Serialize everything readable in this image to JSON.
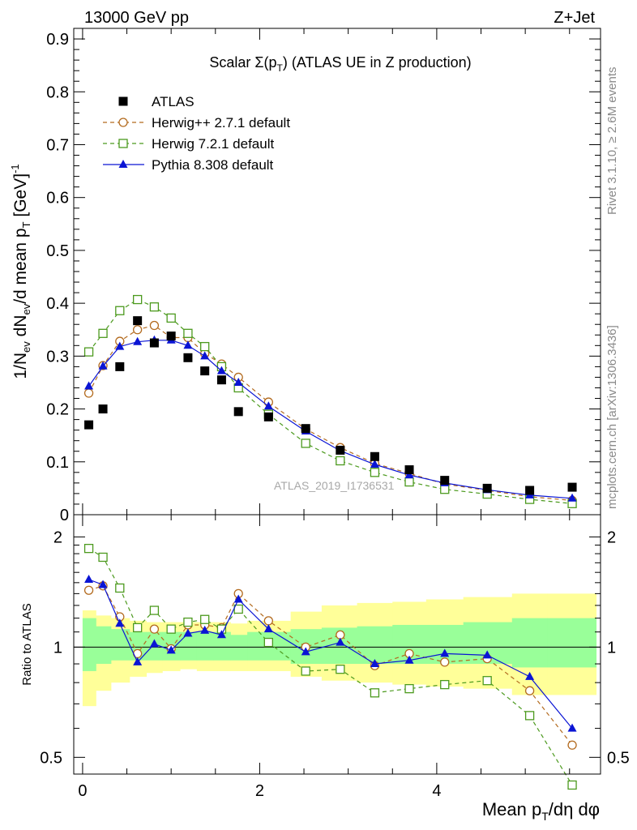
{
  "header": {
    "energy_label": "13000 GeV pp",
    "process_label": "Z+Jet"
  },
  "side_labels": {
    "rivet": "Rivet 3.1.10, ≥ 2.6M events",
    "mcplots": "mcplots.cern.ch [arXiv:1306.3436]"
  },
  "chart_data": [
    {
      "type": "line",
      "panel": "main",
      "title": "Scalar Σ(p_T) (ATLAS UE in Z production)",
      "ylabel": "1/N_ev dN_ev/d mean p_T [GeV]^-1",
      "xlabel": "",
      "watermark": "ATLAS_2019_I1736531",
      "xlim": [
        -0.1,
        5.85
      ],
      "ylim": [
        0,
        0.92
      ],
      "yticks": [
        "0",
        "0.1",
        "0.2",
        "0.3",
        "0.4",
        "0.5",
        "0.6",
        "0.7",
        "0.8",
        "0.9"
      ],
      "xticks": [
        "0",
        "2",
        "4"
      ],
      "legend_position": "top-left",
      "x": [
        0.07,
        0.23,
        0.42,
        0.62,
        0.81,
        1.0,
        1.19,
        1.38,
        1.57,
        1.76,
        2.1,
        2.52,
        2.91,
        3.3,
        3.69,
        4.09,
        4.57,
        5.05,
        5.53
      ],
      "series": [
        {
          "name": "ATLAS",
          "color": "#000000",
          "marker": "square-filled",
          "values": [
            0.17,
            0.2,
            0.28,
            0.367,
            0.325,
            0.338,
            0.297,
            0.272,
            0.255,
            0.195,
            0.185,
            0.163,
            0.122,
            0.11,
            0.085,
            0.065,
            0.05,
            0.046,
            0.052
          ]
        },
        {
          "name": "Herwig++ 2.7.1 default",
          "color": "#b36b1f",
          "marker": "circle-open",
          "dash": "5,4",
          "values": [
            0.23,
            0.282,
            0.328,
            0.35,
            0.358,
            0.335,
            0.335,
            0.305,
            0.285,
            0.26,
            0.213,
            0.162,
            0.127,
            0.097,
            0.078,
            0.058,
            0.046,
            0.034,
            0.027
          ]
        },
        {
          "name": "Herwig 7.2.1 default",
          "color": "#4c9a1e",
          "marker": "square-open",
          "dash": "5,4",
          "values": [
            0.308,
            0.343,
            0.386,
            0.407,
            0.393,
            0.372,
            0.343,
            0.318,
            0.28,
            0.24,
            0.19,
            0.135,
            0.102,
            0.08,
            0.062,
            0.048,
            0.039,
            0.029,
            0.021
          ]
        },
        {
          "name": "Pythia 8.308 default",
          "color": "#0a14d4",
          "marker": "triangle-filled",
          "values": [
            0.243,
            0.281,
            0.318,
            0.327,
            0.33,
            0.33,
            0.32,
            0.3,
            0.272,
            0.25,
            0.205,
            0.158,
            0.121,
            0.095,
            0.075,
            0.06,
            0.047,
            0.037,
            0.031
          ]
        }
      ]
    },
    {
      "type": "line",
      "panel": "ratio",
      "ylabel": "Ratio to ATLAS",
      "xlabel": "Mean p_T/dη dφ",
      "xlim": [
        -0.1,
        5.85
      ],
      "ylim": [
        0.45,
        2.3
      ],
      "yscale": "log",
      "yticks": [
        "0.5",
        "1",
        "2"
      ],
      "xticks": [
        "0",
        "2",
        "4"
      ],
      "reference_line": 1,
      "x": [
        0.07,
        0.23,
        0.42,
        0.62,
        0.81,
        1.0,
        1.19,
        1.38,
        1.57,
        1.76,
        2.1,
        2.52,
        2.91,
        3.3,
        3.69,
        4.09,
        4.57,
        5.05,
        5.53
      ],
      "bands": {
        "bin_edges": [
          0.0,
          0.15,
          0.32,
          0.53,
          0.72,
          0.9,
          1.1,
          1.29,
          1.48,
          1.67,
          1.86,
          2.35,
          2.7,
          3.1,
          3.5,
          3.88,
          4.3,
          4.85,
          5.25,
          5.8
        ],
        "inner": {
          "color": "#99ff99",
          "lower": [
            0.86,
            0.9,
            0.92,
            0.92,
            0.92,
            0.92,
            0.92,
            0.92,
            0.92,
            0.92,
            0.92,
            0.9,
            0.9,
            0.9,
            0.9,
            0.9,
            0.9,
            0.88,
            0.88
          ],
          "upper": [
            1.2,
            1.14,
            1.12,
            1.1,
            1.1,
            1.1,
            1.1,
            1.1,
            1.1,
            1.08,
            1.1,
            1.12,
            1.13,
            1.14,
            1.15,
            1.15,
            1.17,
            1.2,
            1.2
          ]
        },
        "outer": {
          "color": "#ffff99",
          "lower": [
            0.69,
            0.76,
            0.8,
            0.83,
            0.85,
            0.86,
            0.87,
            0.86,
            0.86,
            0.86,
            0.86,
            0.83,
            0.81,
            0.8,
            0.79,
            0.78,
            0.77,
            0.74,
            0.74
          ],
          "upper": [
            1.26,
            1.22,
            1.2,
            1.18,
            1.17,
            1.17,
            1.17,
            1.17,
            1.17,
            1.16,
            1.18,
            1.25,
            1.3,
            1.32,
            1.33,
            1.35,
            1.37,
            1.4,
            1.4
          ]
        }
      },
      "series": [
        {
          "name": "Herwig++ 2.7.1 default",
          "color": "#b36b1f",
          "marker": "circle-open",
          "dash": "5,4",
          "values": [
            1.43,
            1.47,
            1.21,
            0.96,
            1.12,
            0.99,
            1.15,
            1.15,
            1.13,
            1.4,
            1.18,
            1.0,
            1.08,
            0.89,
            0.96,
            0.91,
            0.93,
            0.76,
            0.54
          ]
        },
        {
          "name": "Herwig 7.2.1 default",
          "color": "#4c9a1e",
          "marker": "square-open",
          "dash": "5,4",
          "values": [
            1.86,
            1.76,
            1.45,
            1.13,
            1.26,
            1.12,
            1.17,
            1.19,
            1.12,
            1.27,
            1.03,
            0.86,
            0.87,
            0.75,
            0.77,
            0.79,
            0.81,
            0.65,
            0.42
          ]
        },
        {
          "name": "Pythia 8.308 default",
          "color": "#0a14d4",
          "marker": "triangle-filled",
          "values": [
            1.53,
            1.48,
            1.16,
            0.91,
            1.02,
            0.98,
            1.09,
            1.11,
            1.08,
            1.35,
            1.12,
            0.97,
            1.03,
            0.9,
            0.92,
            0.96,
            0.95,
            0.83,
            0.6
          ]
        }
      ]
    }
  ]
}
